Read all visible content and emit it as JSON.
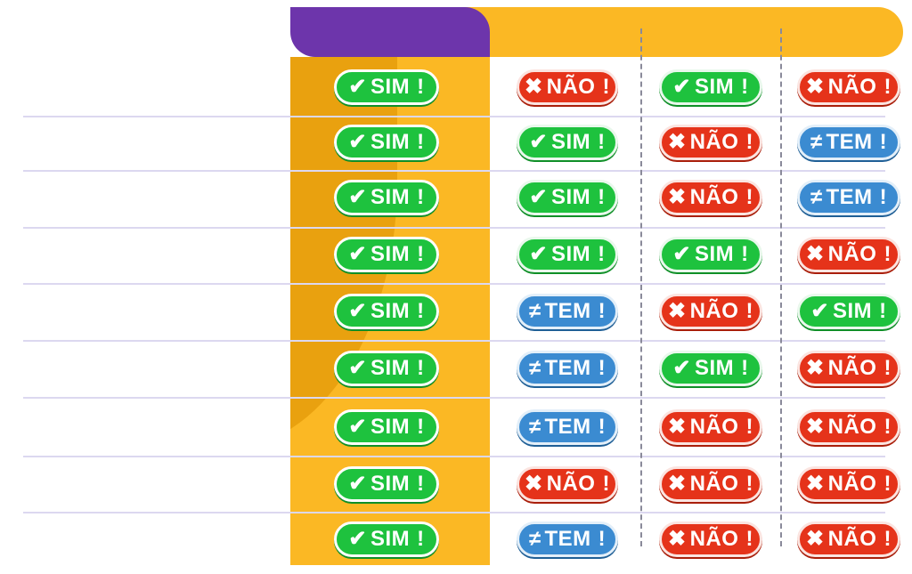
{
  "labels": {
    "sim": "SIM",
    "nao": "NÃO",
    "tem": "TEM"
  },
  "icons": {
    "sim": "check-icon",
    "nao": "cross-icon",
    "tem": "not-equal-icon"
  },
  "colors": {
    "header_purple": "#6d35ab",
    "header_orange": "#fbb824",
    "sim": "#1ec23e",
    "nao": "#e5331a",
    "tem": "#3b8bd1"
  },
  "rows": [
    [
      "sim",
      "nao",
      "sim",
      "nao"
    ],
    [
      "sim",
      "sim",
      "nao",
      "tem"
    ],
    [
      "sim",
      "sim",
      "nao",
      "tem"
    ],
    [
      "sim",
      "sim",
      "sim",
      "nao"
    ],
    [
      "sim",
      "tem",
      "nao",
      "sim"
    ],
    [
      "sim",
      "tem",
      "sim",
      "nao"
    ],
    [
      "sim",
      "tem",
      "nao",
      "nao"
    ],
    [
      "sim",
      "nao",
      "nao",
      "nao"
    ],
    [
      "sim",
      "tem",
      "nao",
      "nao"
    ]
  ]
}
